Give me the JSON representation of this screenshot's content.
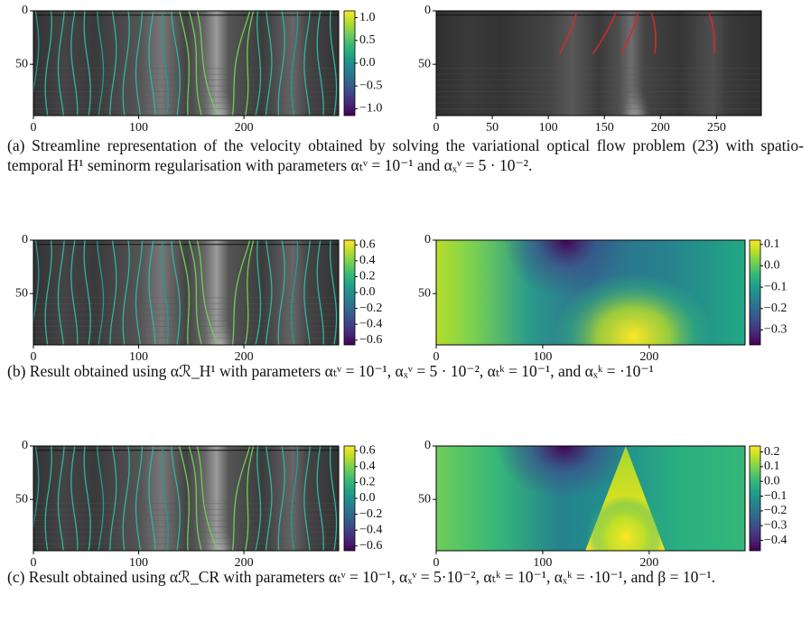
{
  "rows": [
    {
      "left": {
        "kind": "streamlines",
        "xlim": [
          0,
          290
        ],
        "ylim": [
          0,
          98
        ],
        "xticks": [
          0,
          100,
          200
        ],
        "yticks": [
          0,
          50
        ],
        "colorbar": {
          "lim": [
            -1.15,
            1.15
          ],
          "ticks": [
            {
              "value": 1.0,
              "label": "1.0"
            },
            {
              "value": 0.5,
              "label": "0.5"
            },
            {
              "value": 0.0,
              "label": "0.0"
            },
            {
              "value": -0.5,
              "label": "−0.5"
            },
            {
              "value": -1.0,
              "label": "−1.0"
            }
          ]
        }
      },
      "right": {
        "kind": "image",
        "xlim": [
          0,
          290
        ],
        "ylim": [
          0,
          98
        ],
        "xticks": [
          0,
          50,
          100,
          150,
          200,
          250
        ],
        "yticks": [
          0,
          50
        ]
      },
      "caption": "(a) Streamline representation of the velocity obtained by solving the variational optical flow problem (23) with spatio-temporal H¹ seminorm regularisation with parameters αₜᵛ = 10⁻¹ and αₓᵛ = 5 · 10⁻²."
    },
    {
      "left": {
        "kind": "streamlines",
        "xlim": [
          0,
          290
        ],
        "ylim": [
          0,
          98
        ],
        "xticks": [
          0,
          100,
          200
        ],
        "yticks": [
          0,
          50
        ],
        "colorbar": {
          "lim": [
            -0.66,
            0.66
          ],
          "ticks": [
            {
              "value": 0.6,
              "label": "0.6"
            },
            {
              "value": 0.4,
              "label": "0.4"
            },
            {
              "value": 0.2,
              "label": "0.2"
            },
            {
              "value": 0.0,
              "label": "0.0"
            },
            {
              "value": -0.2,
              "label": "−0.2"
            },
            {
              "value": -0.4,
              "label": "−0.4"
            },
            {
              "value": -0.6,
              "label": "−0.6"
            }
          ]
        }
      },
      "right": {
        "kind": "heatmap-b",
        "xlim": [
          0,
          290
        ],
        "ylim": [
          0,
          98
        ],
        "xticks": [
          0,
          100,
          200
        ],
        "yticks": [
          0,
          50
        ],
        "colorbar": {
          "lim": [
            -0.37,
            0.12
          ],
          "ticks": [
            {
              "value": 0.1,
              "label": "0.1"
            },
            {
              "value": 0.0,
              "label": "0.0"
            },
            {
              "value": -0.1,
              "label": "−0.1"
            },
            {
              "value": -0.2,
              "label": "−0.2"
            },
            {
              "value": -0.3,
              "label": "−0.3"
            }
          ]
        }
      },
      "caption": "(b) Result obtained using αℛ_H¹ with parameters αₜᵛ = 10⁻¹, αₓᵛ = 5 · 10⁻², αₜᵏ = 10⁻¹, and αₓᵏ = ·10⁻¹"
    },
    {
      "left": {
        "kind": "streamlines",
        "xlim": [
          0,
          290
        ],
        "ylim": [
          0,
          98
        ],
        "xticks": [
          0,
          100,
          200
        ],
        "yticks": [
          0,
          50
        ],
        "colorbar": {
          "lim": [
            -0.66,
            0.66
          ],
          "ticks": [
            {
              "value": 0.6,
              "label": "0.6"
            },
            {
              "value": 0.4,
              "label": "0.4"
            },
            {
              "value": 0.2,
              "label": "0.2"
            },
            {
              "value": 0.0,
              "label": "0.0"
            },
            {
              "value": -0.2,
              "label": "−0.2"
            },
            {
              "value": -0.4,
              "label": "−0.4"
            },
            {
              "value": -0.6,
              "label": "−0.6"
            }
          ]
        }
      },
      "right": {
        "kind": "heatmap-c",
        "xlim": [
          0,
          290
        ],
        "ylim": [
          0,
          98
        ],
        "xticks": [
          0,
          100,
          200
        ],
        "yticks": [
          0,
          50
        ],
        "colorbar": {
          "lim": [
            -0.47,
            0.24
          ],
          "ticks": [
            {
              "value": 0.2,
              "label": "0.2"
            },
            {
              "value": 0.1,
              "label": "0.1"
            },
            {
              "value": 0.0,
              "label": "0.0"
            },
            {
              "value": -0.1,
              "label": "−0.1"
            },
            {
              "value": -0.2,
              "label": "−0.2"
            },
            {
              "value": -0.3,
              "label": "−0.3"
            },
            {
              "value": -0.4,
              "label": "−0.4"
            }
          ]
        }
      },
      "caption": "(c) Result obtained using αℛ_CR with parameters αₜᵛ = 10⁻¹, αₓᵛ = 5·10⁻², αₜᵏ = 10⁻¹, αₓᵏ = ·10⁻¹, and β = 10⁻¹."
    }
  ]
}
